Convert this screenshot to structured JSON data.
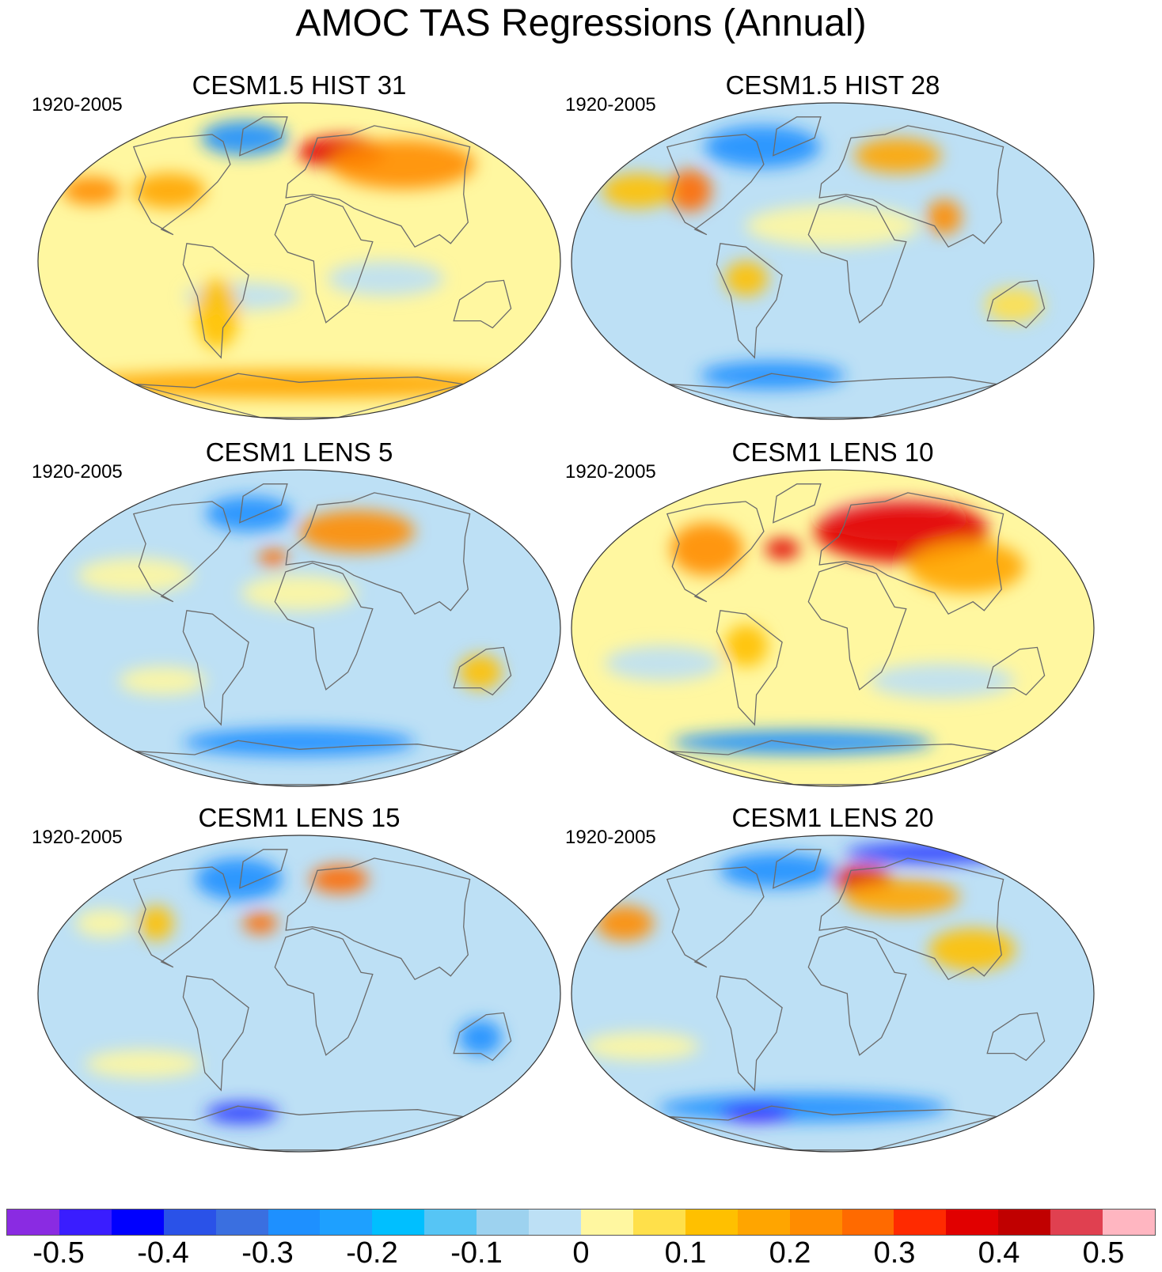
{
  "title": "AMOC TAS Regressions (Annual)",
  "panels": [
    {
      "title": "CESM1.5 HIST 31",
      "period": "1920-2005",
      "base": "#fff7a0",
      "blobs": [
        {
          "lon": -60,
          "lat": 70,
          "rx": 30,
          "ry": 10,
          "color": "#1e90ff"
        },
        {
          "lon": 40,
          "lat": 62,
          "rx": 30,
          "ry": 9,
          "color": "#e10000"
        },
        {
          "lon": 90,
          "lat": 55,
          "rx": 50,
          "ry": 14,
          "color": "#ff8c00"
        },
        {
          "lon": -100,
          "lat": 40,
          "rx": 25,
          "ry": 10,
          "color": "#ffa500"
        },
        {
          "lon": -160,
          "lat": 40,
          "rx": 20,
          "ry": 8,
          "color": "#ff8c00"
        },
        {
          "lon": -40,
          "lat": -20,
          "rx": 40,
          "ry": 8,
          "color": "#bde0f5"
        },
        {
          "lon": 60,
          "lat": -10,
          "rx": 40,
          "ry": 10,
          "color": "#bde0f5"
        },
        {
          "lon": 0,
          "lat": -70,
          "rx": 160,
          "ry": 8,
          "color": "#ffa500"
        },
        {
          "lon": -60,
          "lat": -30,
          "rx": 15,
          "ry": 20,
          "color": "#ffc000"
        }
      ]
    },
    {
      "title": "CESM1.5 HIST 28",
      "period": "1920-2005",
      "base": "#bde0f5",
      "blobs": [
        {
          "lon": -70,
          "lat": 65,
          "rx": 40,
          "ry": 12,
          "color": "#1e90ff"
        },
        {
          "lon": 60,
          "lat": 60,
          "rx": 30,
          "ry": 10,
          "color": "#ffa500"
        },
        {
          "lon": -110,
          "lat": 40,
          "rx": 15,
          "ry": 12,
          "color": "#ff6a00"
        },
        {
          "lon": -150,
          "lat": 40,
          "rx": 25,
          "ry": 10,
          "color": "#ffc000"
        },
        {
          "lon": 80,
          "lat": 25,
          "rx": 12,
          "ry": 10,
          "color": "#ff8c00"
        },
        {
          "lon": -60,
          "lat": -10,
          "rx": 15,
          "ry": 10,
          "color": "#ffc000"
        },
        {
          "lon": -60,
          "lat": -65,
          "rx": 50,
          "ry": 8,
          "color": "#1e90ff"
        },
        {
          "lon": 0,
          "lat": 20,
          "rx": 60,
          "ry": 12,
          "color": "#fff7a0"
        },
        {
          "lon": 130,
          "lat": -25,
          "rx": 20,
          "ry": 10,
          "color": "#ffe04a"
        }
      ]
    },
    {
      "title": "CESM1 LENS 5",
      "period": "1920-2005",
      "base": "#bde0f5",
      "blobs": [
        {
          "lon": -50,
          "lat": 65,
          "rx": 30,
          "ry": 10,
          "color": "#1e90ff"
        },
        {
          "lon": 50,
          "lat": 55,
          "rx": 40,
          "ry": 12,
          "color": "#ff8c00"
        },
        {
          "lon": -20,
          "lat": 40,
          "rx": 10,
          "ry": 5,
          "color": "#ff6a00"
        },
        {
          "lon": -120,
          "lat": 30,
          "rx": 40,
          "ry": 10,
          "color": "#fff7a0"
        },
        {
          "lon": 0,
          "lat": 20,
          "rx": 40,
          "ry": 10,
          "color": "#fff7a0"
        },
        {
          "lon": 130,
          "lat": -25,
          "rx": 15,
          "ry": 10,
          "color": "#ffc000"
        },
        {
          "lon": 0,
          "lat": -65,
          "rx": 80,
          "ry": 8,
          "color": "#1e90ff"
        },
        {
          "lon": -100,
          "lat": -30,
          "rx": 30,
          "ry": 8,
          "color": "#fff7a0"
        }
      ]
    },
    {
      "title": "CESM1 LENS 10",
      "period": "1920-2005",
      "base": "#fff7a0",
      "blobs": [
        {
          "lon": 60,
          "lat": 62,
          "rx": 50,
          "ry": 12,
          "color": "#ffb6c1"
        },
        {
          "lon": 60,
          "lat": 55,
          "rx": 60,
          "ry": 18,
          "color": "#e10000"
        },
        {
          "lon": -40,
          "lat": 45,
          "rx": 12,
          "ry": 6,
          "color": "#e10000"
        },
        {
          "lon": -100,
          "lat": 45,
          "rx": 25,
          "ry": 15,
          "color": "#ff8c00"
        },
        {
          "lon": 100,
          "lat": 35,
          "rx": 40,
          "ry": 15,
          "color": "#ffa500"
        },
        {
          "lon": -60,
          "lat": -10,
          "rx": 15,
          "ry": 12,
          "color": "#ffc000"
        },
        {
          "lon": -120,
          "lat": -20,
          "rx": 40,
          "ry": 10,
          "color": "#bde0f5"
        },
        {
          "lon": 80,
          "lat": -30,
          "rx": 50,
          "ry": 10,
          "color": "#bde0f5"
        },
        {
          "lon": -30,
          "lat": -65,
          "rx": 90,
          "ry": 7,
          "color": "#1e90ff"
        }
      ]
    },
    {
      "title": "CESM1 LENS 15",
      "period": "1920-2005",
      "base": "#bde0f5",
      "blobs": [
        {
          "lon": -60,
          "lat": 65,
          "rx": 30,
          "ry": 12,
          "color": "#1e90ff"
        },
        {
          "lon": 40,
          "lat": 65,
          "rx": 20,
          "ry": 8,
          "color": "#ff6a00"
        },
        {
          "lon": -30,
          "lat": 40,
          "rx": 12,
          "ry": 6,
          "color": "#ff6a00"
        },
        {
          "lon": -110,
          "lat": 40,
          "rx": 12,
          "ry": 10,
          "color": "#ffc000"
        },
        {
          "lon": -150,
          "lat": 40,
          "rx": 20,
          "ry": 8,
          "color": "#fff7a0"
        },
        {
          "lon": 130,
          "lat": -25,
          "rx": 15,
          "ry": 10,
          "color": "#1e90ff"
        },
        {
          "lon": -60,
          "lat": -68,
          "rx": 25,
          "ry": 6,
          "color": "#2a3bff"
        },
        {
          "lon": -120,
          "lat": -40,
          "rx": 40,
          "ry": 8,
          "color": "#fff7a0"
        }
      ]
    },
    {
      "title": "CESM1 LENS 20",
      "period": "1920-2005",
      "base": "#bde0f5",
      "blobs": [
        {
          "lon": 30,
          "lat": 65,
          "rx": 20,
          "ry": 8,
          "color": "#e10000"
        },
        {
          "lon": 60,
          "lat": 55,
          "rx": 40,
          "ry": 10,
          "color": "#ffa500"
        },
        {
          "lon": -60,
          "lat": 70,
          "rx": 40,
          "ry": 10,
          "color": "#1e90ff"
        },
        {
          "lon": 150,
          "lat": 80,
          "rx": 60,
          "ry": 6,
          "color": "#2a3bff"
        },
        {
          "lon": -160,
          "lat": 40,
          "rx": 20,
          "ry": 10,
          "color": "#ff8c00"
        },
        {
          "lon": 100,
          "lat": 25,
          "rx": 30,
          "ry": 12,
          "color": "#ffc000"
        },
        {
          "lon": -140,
          "lat": -30,
          "rx": 40,
          "ry": 8,
          "color": "#fff7a0"
        },
        {
          "lon": -30,
          "lat": -65,
          "rx": 100,
          "ry": 8,
          "color": "#1e90ff"
        },
        {
          "lon": -80,
          "lat": -68,
          "rx": 25,
          "ry": 5,
          "color": "#3a1dff"
        }
      ]
    }
  ],
  "colorbar": {
    "colors": [
      "#8a2be2",
      "#3a1dff",
      "#0000ff",
      "#2a52e8",
      "#3a6fe0",
      "#1e90ff",
      "#1ea0ff",
      "#00bfff",
      "#56c5f5",
      "#9dd2ef",
      "#bde0f5",
      "#fff7a0",
      "#ffe04a",
      "#ffc000",
      "#ffa500",
      "#ff8c00",
      "#ff6a00",
      "#ff2a00",
      "#e10000",
      "#c00000",
      "#e04050",
      "#ffb6c1"
    ],
    "labels": [
      "-0.5",
      "-0.4",
      "-0.3",
      "-0.2",
      "-0.1",
      "0",
      "0.1",
      "0.2",
      "0.3",
      "0.4",
      "0.5"
    ]
  }
}
